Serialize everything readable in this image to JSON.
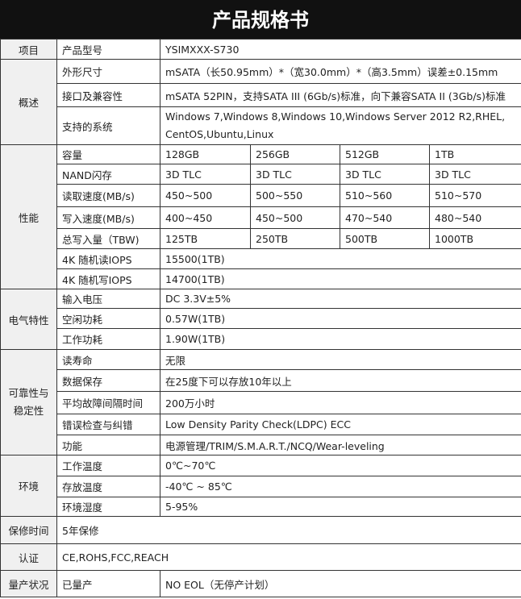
{
  "title": "产品规格书",
  "rows": {
    "item": {
      "label": "项目",
      "key": "产品型号",
      "value": "YSIMXXX-S730"
    },
    "overview": {
      "label": "概述",
      "items": [
        {
          "key": "外形尺寸",
          "value": "mSATA（长50.95mm）*（宽30.0mm）*（高3.5mm）误差±0.15mm"
        },
        {
          "key": "接口及兼容性",
          "value": "mSATA 52PIN，支持SATA III (6Gb/s)标准，向下兼容SATA II (3Gb/s)标准"
        },
        {
          "key": "支持的系统",
          "value": "Windows 7,Windows 8,Windows 10,Windows Server 2012 R2,RHEL, CentOS,Ubuntu,Linux"
        }
      ]
    },
    "performance": {
      "label": "性能",
      "items": [
        {
          "key": "容量",
          "values": [
            "128GB",
            "256GB",
            "512GB",
            "1TB"
          ]
        },
        {
          "key": "NAND闪存",
          "values": [
            "3D TLC",
            "3D TLC",
            "3D TLC",
            "3D TLC"
          ]
        },
        {
          "key": "读取速度(MB/s)",
          "values": [
            "450~500",
            "500~550",
            "510~560",
            "510~570"
          ]
        },
        {
          "key": "写入速度(MB/s)",
          "values": [
            "400~450",
            "450~500",
            "470~540",
            "480~540"
          ]
        },
        {
          "key": "总写入量（TBW)",
          "values": [
            "125TB",
            "250TB",
            "500TB",
            "1000TB"
          ]
        },
        {
          "key": "4K 随机读IOPS",
          "value": "15500(1TB)"
        },
        {
          "key": "4K 随机写IOPS",
          "value": "14700(1TB)"
        }
      ]
    },
    "electrical": {
      "label": "电气特性",
      "items": [
        {
          "key": "输入电压",
          "value": "DC 3.3V±5%"
        },
        {
          "key": "空闲功耗",
          "value": "0.57W(1TB)"
        },
        {
          "key": "工作功耗",
          "value": "1.90W(1TB)"
        }
      ]
    },
    "reliability": {
      "label1": "可靠性与",
      "label2": "稳定性",
      "items": [
        {
          "key": "读寿命",
          "value": "无限"
        },
        {
          "key": "数据保存",
          "value": "在25度下可以存放10年以上"
        },
        {
          "key": "平均故障间隔时间",
          "value": "200万小时"
        },
        {
          "key": "错误检查与纠错",
          "value": "Low Density Parity Check(LDPC) ECC"
        },
        {
          "key": "功能",
          "value": "电源管理/TRIM/S.M.A.R.T./NCQ/Wear-leveling"
        }
      ]
    },
    "environment": {
      "label": "环境",
      "items": [
        {
          "key": "工作温度",
          "value": "0℃~70℃"
        },
        {
          "key": "存放温度",
          "value": "-40℃ ~ 85℃"
        },
        {
          "key": "环境湿度",
          "value": "5-95%"
        }
      ]
    },
    "warranty": {
      "label": "保修时间",
      "value": "5年保修"
    },
    "cert": {
      "label": "认证",
      "value": "CE,ROHS,FCC,REACH"
    },
    "production": {
      "label": "量产状况",
      "key": "已量产",
      "value": "NO EOL（无停产计划）"
    }
  }
}
